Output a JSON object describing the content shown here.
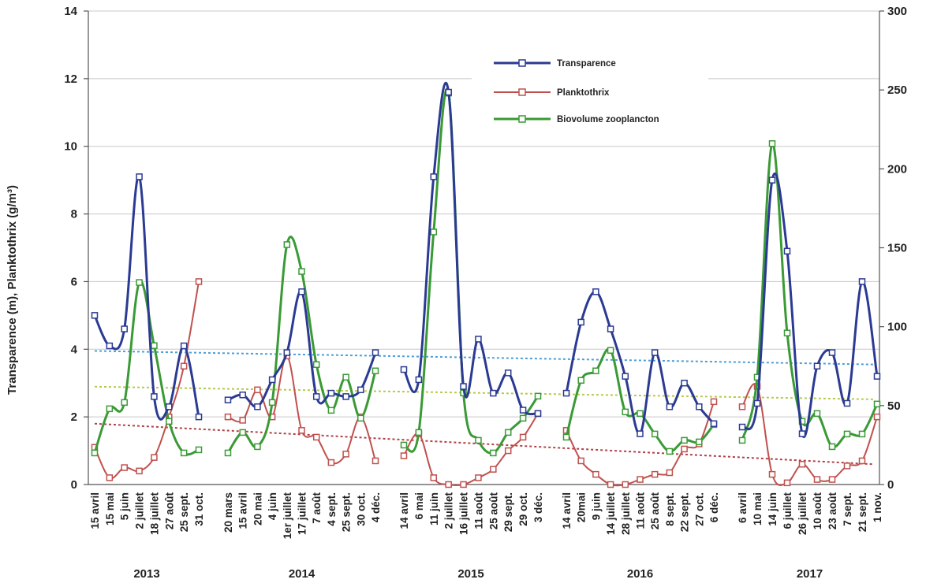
{
  "chart_data": {
    "type": "line",
    "ylabel": "Transparence (m), Planktothrix (g/m³)",
    "ylim": [
      0,
      14
    ],
    "y_ticks": [
      "0",
      "2",
      "4",
      "6",
      "8",
      "10",
      "12",
      "14"
    ],
    "y2lim": [
      0,
      300
    ],
    "y2_ticks": [
      "0",
      "50",
      "100",
      "150",
      "200",
      "250",
      "300"
    ],
    "grid": "horizontal",
    "legend_position": "top-right",
    "legend": [
      "Transparence",
      "Planktothrix",
      "Biovolume zooplancton"
    ],
    "groups": [
      {
        "year": "2013",
        "dates": [
          "15 avril",
          "15 mai",
          "5 juin",
          "2 juillet",
          "18 juillet",
          "27 août",
          "25 sept.",
          "31 oct."
        ]
      },
      {
        "year": "2014",
        "dates": [
          "20 mars",
          "15 avril",
          "20 mai",
          "4 juin",
          "1er juillet",
          "17 juillet",
          "7 août",
          "4 sept.",
          "25 sept.",
          "30 oct.",
          "4 déc."
        ]
      },
      {
        "year": "2015",
        "dates": [
          "14 avril",
          "6 mai",
          "11 juin",
          "2 juillet",
          "16 juillet",
          "11 août",
          "25 août",
          "29 sept.",
          "29 oct.",
          "3 déc."
        ]
      },
      {
        "year": "2016",
        "dates": [
          "14 avril",
          "20mai",
          "9 juin",
          "14 juillet",
          "28 juillet",
          "11 août",
          "25 août",
          "8 sept.",
          "22 sept.",
          "27 oct.",
          "6 déc."
        ]
      },
      {
        "year": "2017",
        "dates": [
          "6 avril",
          "10 mai",
          "14 juin",
          "6 juillet",
          "26 juillet",
          "10 août",
          "23 août",
          "7 sept.",
          "21 sept.",
          "1 nov."
        ]
      }
    ],
    "series": [
      {
        "name": "Transparence",
        "axis": "left",
        "color": "#2b3a92",
        "values": [
          [
            5.0,
            4.1,
            4.6,
            9.1,
            2.6,
            2.3,
            4.1,
            2.0
          ],
          [
            2.5,
            2.65,
            2.3,
            3.1,
            3.9,
            5.7,
            2.6,
            2.7,
            2.6,
            2.8,
            3.9
          ],
          [
            3.4,
            3.1,
            9.1,
            11.6,
            2.9,
            4.3,
            2.7,
            3.3,
            2.2,
            2.1
          ],
          [
            2.7,
            4.8,
            5.7,
            4.6,
            3.2,
            1.5,
            3.9,
            2.3,
            3.0,
            2.3,
            1.8
          ],
          [
            1.7,
            2.4,
            9.0,
            6.9,
            1.5,
            3.5,
            3.9,
            2.4,
            6.0,
            3.2
          ]
        ]
      },
      {
        "name": "Planktothrix",
        "axis": "left",
        "color": "#c0504d",
        "values": [
          [
            1.1,
            0.2,
            0.5,
            0.4,
            0.8,
            2.0,
            3.5,
            6.0
          ],
          [
            2.0,
            1.9,
            2.8,
            2.0,
            3.8,
            1.6,
            1.4,
            0.65,
            0.9,
            2.0,
            0.7
          ],
          [
            0.85,
            1.5,
            0.2,
            0.0,
            0.0,
            0.2,
            0.45,
            1.0,
            1.4,
            2.1
          ],
          [
            1.6,
            0.7,
            0.3,
            0.0,
            0.0,
            0.15,
            0.3,
            0.35,
            1.05,
            1.2,
            2.45
          ],
          [
            2.3,
            2.9,
            0.3,
            0.05,
            0.6,
            0.15,
            0.15,
            0.55,
            0.7,
            2.0
          ]
        ]
      },
      {
        "name": "Biovolume zooplancton",
        "axis": "right",
        "color": "#3a9a35",
        "values": [
          [
            20,
            48,
            52,
            128,
            88,
            40,
            20,
            22
          ],
          [
            20,
            33,
            24,
            52,
            152,
            135,
            76,
            47,
            68,
            42,
            72
          ],
          [
            25,
            33,
            160,
            248,
            58,
            28,
            20,
            33,
            42,
            56
          ],
          [
            30,
            66,
            72,
            85,
            46,
            45,
            32,
            21,
            28,
            27,
            38
          ],
          [
            28,
            68,
            216,
            96,
            40,
            45,
            24,
            32,
            32,
            51
          ]
        ]
      }
    ],
    "trendlines": [
      {
        "series": "Transparence",
        "color": "#4a9fd8",
        "from": 3.95,
        "to": 3.55
      },
      {
        "series": "Planktothrix",
        "color": "#b04048",
        "from": 1.8,
        "to": 0.6
      },
      {
        "series": "Biovolume zooplancton",
        "color": "#b7c94a",
        "axis": "right",
        "from": 62,
        "to": 54
      }
    ]
  }
}
